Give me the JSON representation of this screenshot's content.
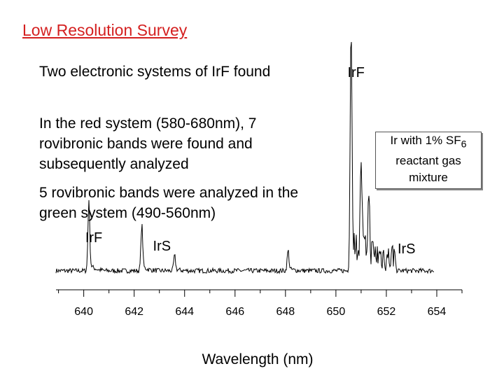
{
  "slide": {
    "title": "Low Resolution Survey",
    "bullet1": "Two electronic systems of IrF found",
    "bullet2": "In the red system (580-680nm), 7 rovibronic bands were found and subsequently analyzed",
    "bullet3": "5 rovibronic bands were analyzed in the green system (490-560nm)"
  },
  "chart_data": {
    "type": "line",
    "xlabel": "Wavelength (nm)",
    "ylabel": "",
    "xlim": [
      638.9,
      655.0
    ],
    "xticks": [
      640,
      642,
      644,
      646,
      648,
      650,
      652,
      654
    ],
    "legend": {
      "line1": "Ir with 1% SF",
      "sub": "6",
      "line2": "reactant gas",
      "line3": "mixture",
      "placement": "right"
    },
    "annotations": [
      {
        "text": "IrF",
        "x": 640.4
      },
      {
        "text": "IrS",
        "x": 643.1
      },
      {
        "text": "IrF",
        "x": 650.8
      },
      {
        "text": "IrS",
        "x": 652.8
      }
    ],
    "peaks": [
      {
        "x": 640.2,
        "height": 0.27
      },
      {
        "x": 642.3,
        "height": 0.18
      },
      {
        "x": 643.6,
        "height": 0.06
      },
      {
        "x": 648.1,
        "height": 0.08
      },
      {
        "x": 650.6,
        "height": 1.0
      },
      {
        "x": 651.0,
        "height": 0.35
      },
      {
        "x": 651.3,
        "height": 0.22
      }
    ],
    "baseline": 0.05
  }
}
